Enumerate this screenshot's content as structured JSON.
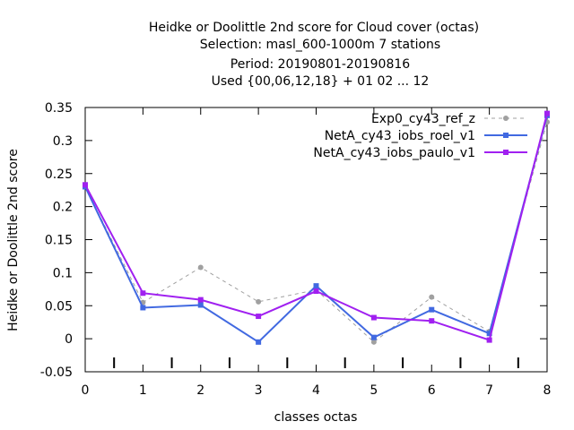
{
  "title_lines": [
    "Heidke or Doolittle 2nd score  for Cloud cover (octas)",
    "Selection: masl_600-1000m      7 stations",
    "Period: 20190801-20190816",
    "Used {00,06,12,18} + 01 02 ... 12"
  ],
  "chart_data": {
    "type": "line",
    "title": "Heidke or Doolittle 2nd score  for Cloud cover (octas)",
    "xlabel": "classes octas",
    "ylabel": "Heidke or Doolittle 2nd score",
    "x": [
      0,
      1,
      2,
      3,
      4,
      5,
      6,
      7,
      8
    ],
    "xlim": [
      0,
      8
    ],
    "ylim": [
      -0.05,
      0.35
    ],
    "x_ticks": [
      "0",
      "1",
      "2",
      "3",
      "4",
      "5",
      "6",
      "7",
      "8"
    ],
    "y_ticks": [
      "-0.05",
      "0",
      "0.05",
      "0.1",
      "0.15",
      "0.2",
      "0.25",
      "0.3",
      "0.35"
    ],
    "grid": false,
    "legend_position": "top-right",
    "series": [
      {
        "name": "Exp0_cy43_ref_z",
        "color": "#a0a0a0",
        "dashed": true,
        "values": [
          0.23,
          0.055,
          0.108,
          0.056,
          0.074,
          -0.005,
          0.063,
          0.011,
          0.328
        ]
      },
      {
        "name": "NetA_cy43_iobs_roel_v1",
        "color": "#4169e1",
        "dashed": false,
        "values": [
          0.23,
          0.047,
          0.051,
          -0.005,
          0.08,
          0.002,
          0.044,
          0.008,
          0.338
        ]
      },
      {
        "name": "NetA_cy43_iobs_paulo_v1",
        "color": "#a020f0",
        "dashed": false,
        "values": [
          0.233,
          0.069,
          0.059,
          0.034,
          0.072,
          0.032,
          0.027,
          -0.002,
          0.341
        ]
      }
    ]
  }
}
